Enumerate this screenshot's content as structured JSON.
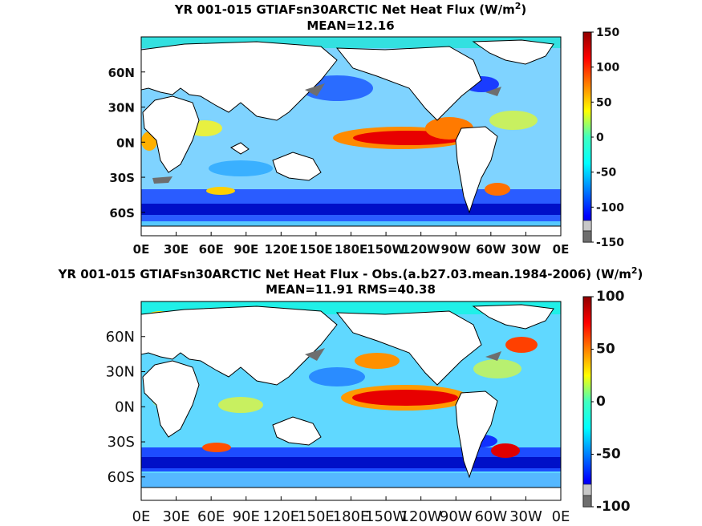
{
  "chart_data": [
    {
      "type": "heatmap",
      "title": "YR 001-015 GTIAFsn30ARCTIC  Net Heat Flux (W/m",
      "title_superscript": "2",
      "title_close": ")",
      "subtitle": "MEAN=12.16",
      "x_ticks": [
        "0E",
        "30E",
        "60E",
        "90E",
        "120E",
        "150E",
        "180E",
        "150W",
        "120W",
        "90W",
        "60W",
        "30W",
        "0E"
      ],
      "y_ticks": [
        "60N",
        "30N",
        "0N",
        "30S",
        "60S"
      ],
      "lat_values": [
        60,
        30,
        0,
        -30,
        -60
      ],
      "ylim": [
        -80,
        90
      ],
      "xlim": [
        0,
        360
      ],
      "colorbar": {
        "ticks": [
          "150",
          "100",
          "50",
          "0",
          "-50",
          "-100",
          "-150"
        ],
        "values": [
          150,
          100,
          50,
          0,
          -50,
          -100,
          -150
        ],
        "range": [
          -150,
          150
        ]
      },
      "mean": 12.16
    },
    {
      "type": "heatmap",
      "title": "YR 001-015 GTIAFsn30ARCTIC  Net Heat Flux - Obs.(a.b27.03.mean.1984-2006) (W/m",
      "title_superscript": "2",
      "title_close": ")",
      "subtitle": "MEAN=11.91 RMS=40.38",
      "x_ticks": [
        "0E",
        "30E",
        "60E",
        "90E",
        "120E",
        "150E",
        "180E",
        "150W",
        "120W",
        "90W",
        "60W",
        "30W",
        "0E"
      ],
      "y_ticks": [
        "60N",
        "30N",
        "0N",
        "30S",
        "60S"
      ],
      "lat_values": [
        60,
        30,
        0,
        -30,
        -60
      ],
      "ylim": [
        -80,
        90
      ],
      "xlim": [
        0,
        360
      ],
      "colorbar": {
        "ticks": [
          "100",
          "50",
          "0",
          "-50",
          "-100"
        ],
        "values": [
          100,
          50,
          0,
          -50,
          -100
        ],
        "range": [
          -100,
          100
        ]
      },
      "mean": 11.91,
      "rms": 40.38
    }
  ]
}
